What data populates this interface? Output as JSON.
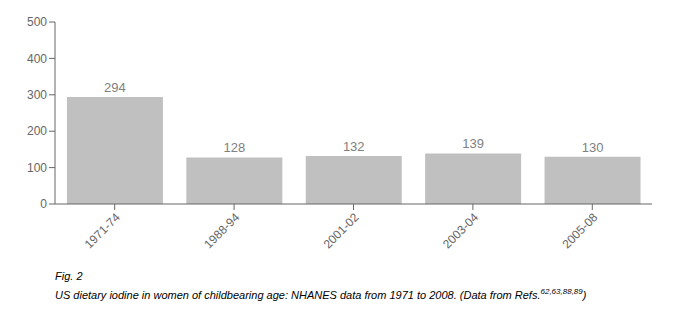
{
  "chart_data": {
    "type": "bar",
    "categories": [
      "1971-74",
      "1988-94",
      "2001-02",
      "2003-04",
      "2005-08"
    ],
    "values": [
      294,
      128,
      132,
      139,
      130
    ],
    "color": "#c0c0c0",
    "ylim": [
      0,
      500
    ],
    "yticks": [
      0,
      100,
      200,
      300,
      400,
      500
    ],
    "grid": false,
    "data_labels": true,
    "annotations": [
      "Fig. 2",
      "US dietary iodine in women of childbearing age: NHANES data from 1971 to 2008. (Data from Refs.",
      "62,63,88,89",
      ")"
    ]
  }
}
